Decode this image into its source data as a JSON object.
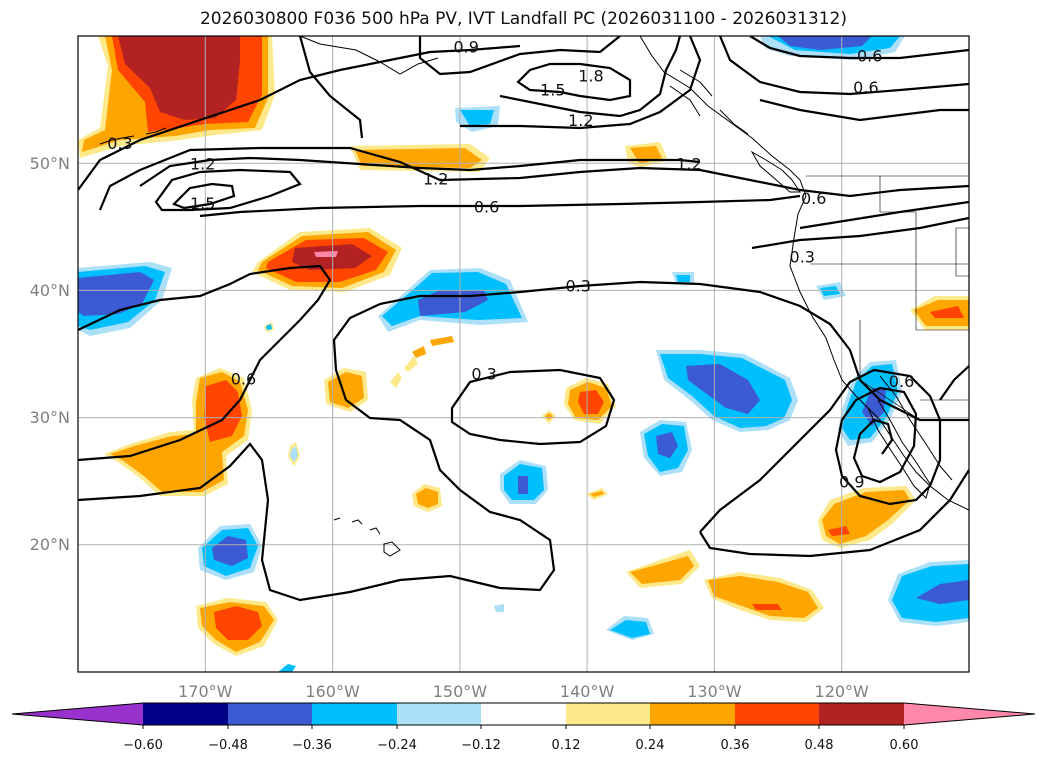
{
  "title": "2026030800 F036 500 hPa PV, IVT Landfall PC (2026031100 - 2026031312)",
  "colors": {
    "neg_extend": "#9932cc",
    "neg_060": "#000088",
    "neg_048": "#3c5bd2",
    "neg_036": "#00bfff",
    "neg_024": "#acdff8",
    "neutral": "#ffffff",
    "pos_012": "#fde98a",
    "pos_024": "#ffa500",
    "pos_036": "#ff4500",
    "pos_048": "#b22222",
    "pos_extend": "#ff88aa"
  },
  "chart_data": {
    "type": "map",
    "projection": "lat-lon",
    "lon_range": [
      -180,
      -110
    ],
    "lat_range": [
      10,
      60
    ],
    "lon_ticks": [
      "170°W",
      "160°W",
      "150°W",
      "140°W",
      "130°W",
      "120°W"
    ],
    "lat_ticks": [
      "50°N",
      "40°N",
      "30°N",
      "20°N"
    ],
    "grid": true,
    "colorbar": {
      "ticks": [
        "−0.60",
        "−0.48",
        "−0.36",
        "−0.24",
        "−0.12",
        "0.12",
        "0.24",
        "0.36",
        "0.48",
        "0.60"
      ],
      "levels": [
        -0.6,
        -0.48,
        -0.36,
        -0.24,
        -0.12,
        0.12,
        0.24,
        0.36,
        0.48,
        0.6
      ],
      "extend": "both"
    },
    "contour_labels": [
      {
        "text": "0.9",
        "lon": -149.5,
        "lat": 59.1
      },
      {
        "text": "1.8",
        "lon": -139.7,
        "lat": 56.8
      },
      {
        "text": "1.5",
        "lon": -142.7,
        "lat": 55.7
      },
      {
        "text": "1.2",
        "lon": -140.5,
        "lat": 53.3
      },
      {
        "text": "0.6",
        "lon": -117.8,
        "lat": 58.4
      },
      {
        "text": "0.6",
        "lon": -118.1,
        "lat": 55.9
      },
      {
        "text": "0.3",
        "lon": -176.7,
        "lat": 51.5
      },
      {
        "text": "1.2",
        "lon": -170.2,
        "lat": 49.9
      },
      {
        "text": "1.5",
        "lon": -170.2,
        "lat": 46.8
      },
      {
        "text": "1.2",
        "lon": -151.9,
        "lat": 48.7
      },
      {
        "text": "1.2",
        "lon": -132.0,
        "lat": 49.9
      },
      {
        "text": "0.6",
        "lon": -147.9,
        "lat": 46.5
      },
      {
        "text": "0.6",
        "lon": -122.2,
        "lat": 47.2
      },
      {
        "text": "0.3",
        "lon": -123.1,
        "lat": 42.6
      },
      {
        "text": "0.3",
        "lon": -140.7,
        "lat": 40.3
      },
      {
        "text": "0.3",
        "lon": -148.1,
        "lat": 33.4
      },
      {
        "text": "0.6",
        "lon": -167.0,
        "lat": 33.0
      },
      {
        "text": "0.6",
        "lon": -115.3,
        "lat": 32.8
      },
      {
        "text": "0.9",
        "lon": -119.2,
        "lat": 24.9
      }
    ]
  }
}
